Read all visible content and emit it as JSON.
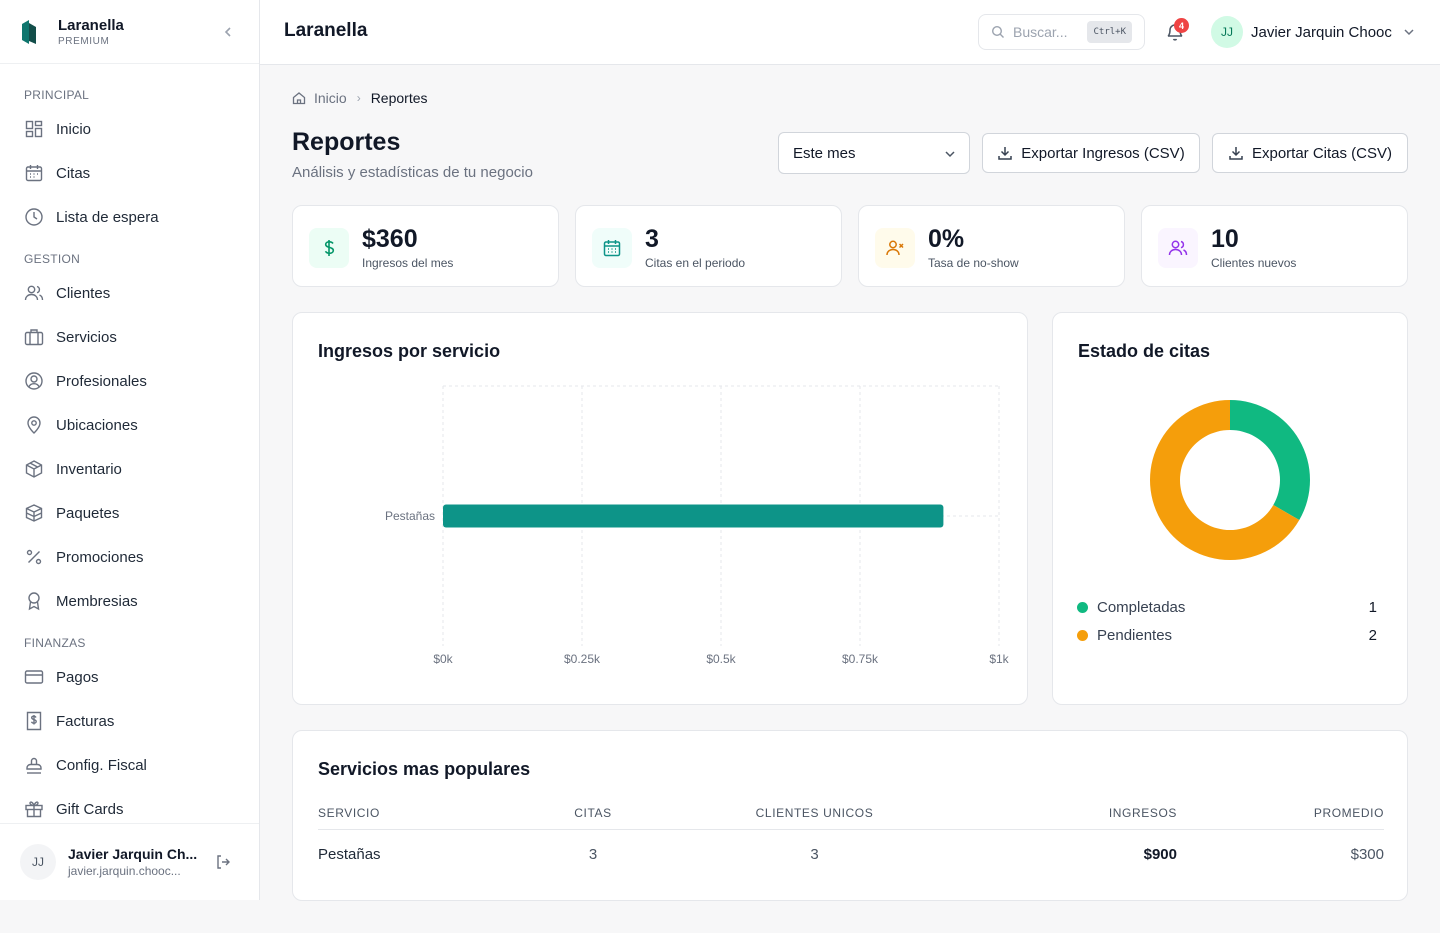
{
  "brand": {
    "name": "Laranella",
    "tier": "PREMIUM"
  },
  "sidebar": {
    "sections": [
      {
        "label": "PRINCIPAL",
        "items": [
          {
            "label": "Inicio",
            "icon": "grid-icon"
          },
          {
            "label": "Citas",
            "icon": "calendar-icon"
          },
          {
            "label": "Lista de espera",
            "icon": "clock-icon"
          }
        ]
      },
      {
        "label": "GESTION",
        "items": [
          {
            "label": "Clientes",
            "icon": "users-icon"
          },
          {
            "label": "Servicios",
            "icon": "briefcase-icon"
          },
          {
            "label": "Profesionales",
            "icon": "user-circle-icon"
          },
          {
            "label": "Ubicaciones",
            "icon": "map-pin-icon"
          },
          {
            "label": "Inventario",
            "icon": "box-icon"
          },
          {
            "label": "Paquetes",
            "icon": "package-icon"
          },
          {
            "label": "Promociones",
            "icon": "percent-icon"
          },
          {
            "label": "Membresias",
            "icon": "award-icon"
          }
        ]
      },
      {
        "label": "FINANZAS",
        "items": [
          {
            "label": "Pagos",
            "icon": "credit-card-icon"
          },
          {
            "label": "Facturas",
            "icon": "receipt-icon"
          },
          {
            "label": "Config. Fiscal",
            "icon": "stamp-icon"
          },
          {
            "label": "Gift Cards",
            "icon": "gift-icon"
          }
        ]
      }
    ],
    "user": {
      "initials": "JJ",
      "name": "Javier Jarquin Ch...",
      "email": "javier.jarquin.chooc..."
    }
  },
  "header": {
    "title": "Laranella",
    "search_placeholder": "Buscar...",
    "shortcut": "Ctrl+K",
    "notifications": "4",
    "user_initials": "JJ",
    "user_name": "Javier Jarquin Chooc"
  },
  "breadcrumb": {
    "home": "Inicio",
    "current": "Reportes"
  },
  "page": {
    "title": "Reportes",
    "subtitle": "Análisis y estadísticas de tu negocio"
  },
  "controls": {
    "period": "Este mes",
    "export_income": "Exportar Ingresos (CSV)",
    "export_appointments": "Exportar Citas (CSV)"
  },
  "stats": [
    {
      "value": "$360",
      "label": "Ingresos del mes",
      "icon": "dollar-icon",
      "color": "#059669",
      "bg": "#ecfdf5"
    },
    {
      "value": "3",
      "label": "Citas en el periodo",
      "icon": "calendar-icon",
      "color": "#0d9488",
      "bg": "#f0fdfa"
    },
    {
      "value": "0%",
      "label": "Tasa de no-show",
      "icon": "user-x-icon",
      "color": "#d97706",
      "bg": "#fffbeb"
    },
    {
      "value": "10",
      "label": "Clientes nuevos",
      "icon": "users-icon",
      "color": "#9333ea",
      "bg": "#faf5ff"
    }
  ],
  "income_chart": {
    "title": "Ingresos por servicio",
    "chart_data": {
      "type": "bar",
      "orientation": "horizontal",
      "categories": [
        "Pestañas"
      ],
      "values": [
        900
      ],
      "xlim": [
        0,
        1000
      ],
      "xticks": [
        "$0k",
        "$0.25k",
        "$0.5k",
        "$0.75k",
        "$1k"
      ],
      "grid": true,
      "color": "#0d9488"
    }
  },
  "status_chart": {
    "title": "Estado de citas",
    "chart_data": {
      "type": "pie",
      "style": "donut",
      "slices": [
        {
          "label": "Completadas",
          "value": 1,
          "color": "#10b981"
        },
        {
          "label": "Pendientes",
          "value": 2,
          "color": "#f59e0b"
        }
      ]
    }
  },
  "popular": {
    "title": "Servicios mas populares",
    "columns": [
      "SERVICIO",
      "CITAS",
      "CLIENTES UNICOS",
      "INGRESOS",
      "PROMEDIO"
    ],
    "rows": [
      {
        "service": "Pestañas",
        "appointments": "3",
        "unique_clients": "3",
        "income": "$900",
        "average": "$300"
      }
    ]
  }
}
